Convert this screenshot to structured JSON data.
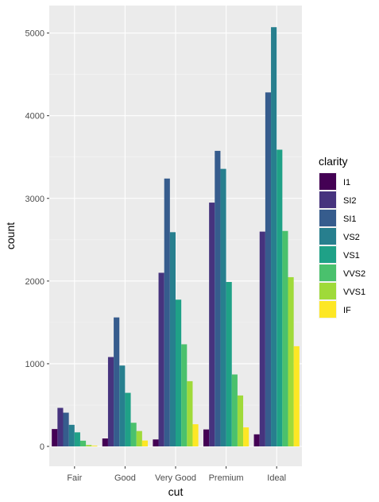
{
  "chart_data": {
    "type": "bar",
    "xlabel": "cut",
    "ylabel": "count",
    "categories": [
      "Fair",
      "Good",
      "Very Good",
      "Premium",
      "Ideal"
    ],
    "yticks": [
      0,
      1000,
      2000,
      3000,
      4000,
      5000
    ],
    "ylim": [
      -250,
      5300
    ],
    "grid": true,
    "legend_position": "right",
    "legend_title": "clarity",
    "series": [
      {
        "name": "I1",
        "color": "#440154",
        "values": [
          210,
          96,
          84,
          205,
          146
        ]
      },
      {
        "name": "SI2",
        "color": "#46337E",
        "values": [
          466,
          1081,
          2100,
          2949,
          2598
        ]
      },
      {
        "name": "SI1",
        "color": "#365C8D",
        "values": [
          408,
          1560,
          3240,
          3575,
          4282
        ]
      },
      {
        "name": "VS2",
        "color": "#277F8E",
        "values": [
          261,
          978,
          2591,
          3357,
          5071
        ]
      },
      {
        "name": "VS1",
        "color": "#1FA187",
        "values": [
          170,
          648,
          1775,
          1989,
          3589
        ]
      },
      {
        "name": "VVS2",
        "color": "#4AC16D",
        "values": [
          69,
          286,
          1235,
          870,
          2606
        ]
      },
      {
        "name": "VVS1",
        "color": "#9FDA3A",
        "values": [
          17,
          186,
          789,
          616,
          2047
        ]
      },
      {
        "name": "IF",
        "color": "#FDE725",
        "values": [
          9,
          71,
          268,
          230,
          1212
        ]
      }
    ]
  }
}
